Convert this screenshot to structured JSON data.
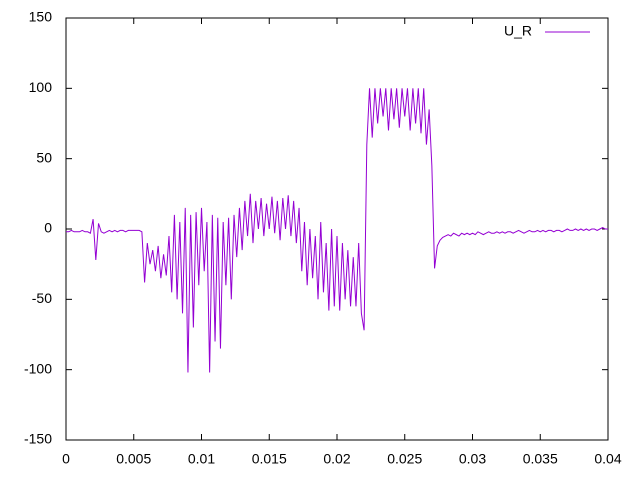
{
  "chart_data": {
    "type": "line",
    "xlim": [
      0,
      0.04
    ],
    "ylim": [
      -150,
      150
    ],
    "xticks": [
      0,
      0.005,
      0.01,
      0.015,
      0.02,
      0.025,
      0.03,
      0.035,
      0.04
    ],
    "yticks": [
      -150,
      -100,
      -50,
      0,
      50,
      100,
      150
    ],
    "legend": "top-right",
    "grid": false,
    "x": [
      0,
      0.0002,
      0.0004,
      0.0006,
      0.0008,
      0.001,
      0.0012,
      0.0014,
      0.0016,
      0.0018,
      0.002,
      0.0022,
      0.0024,
      0.0026,
      0.0028,
      0.003,
      0.0032,
      0.0034,
      0.0036,
      0.0038,
      0.004,
      0.0042,
      0.0044,
      0.0046,
      0.0048,
      0.005,
      0.0052,
      0.0054,
      0.0056,
      0.0058,
      0.006,
      0.0062,
      0.0064,
      0.0066,
      0.0068,
      0.007,
      0.0072,
      0.0074,
      0.0076,
      0.0078,
      0.008,
      0.0082,
      0.0084,
      0.0086,
      0.0088,
      0.009,
      0.0092,
      0.0094,
      0.0096,
      0.0098,
      0.01,
      0.0102,
      0.0104,
      0.0106,
      0.0108,
      0.011,
      0.0112,
      0.0114,
      0.0116,
      0.0118,
      0.012,
      0.0122,
      0.0124,
      0.0126,
      0.0128,
      0.013,
      0.0132,
      0.0134,
      0.0136,
      0.0138,
      0.014,
      0.0142,
      0.0144,
      0.0146,
      0.0148,
      0.015,
      0.0152,
      0.0154,
      0.0156,
      0.0158,
      0.016,
      0.0162,
      0.0164,
      0.0166,
      0.0168,
      0.017,
      0.0172,
      0.0174,
      0.0176,
      0.0178,
      0.018,
      0.0182,
      0.0184,
      0.0186,
      0.0188,
      0.019,
      0.0192,
      0.0194,
      0.0196,
      0.0198,
      0.02,
      0.0202,
      0.0204,
      0.0206,
      0.0208,
      0.021,
      0.0212,
      0.0214,
      0.0216,
      0.0218,
      0.022,
      0.0222,
      0.0224,
      0.0226,
      0.0228,
      0.023,
      0.0232,
      0.0234,
      0.0236,
      0.0238,
      0.024,
      0.0242,
      0.0244,
      0.0246,
      0.0248,
      0.025,
      0.0252,
      0.0254,
      0.0256,
      0.0258,
      0.026,
      0.0262,
      0.0264,
      0.0266,
      0.0268,
      0.027,
      0.0272,
      0.0274,
      0.0276,
      0.0278,
      0.028,
      0.0282,
      0.0284,
      0.0286,
      0.0288,
      0.029,
      0.0292,
      0.0294,
      0.0296,
      0.0298,
      0.03,
      0.0302,
      0.0304,
      0.0306,
      0.0308,
      0.031,
      0.0312,
      0.0314,
      0.0316,
      0.0318,
      0.032,
      0.0322,
      0.0324,
      0.0326,
      0.0328,
      0.033,
      0.0332,
      0.0334,
      0.0336,
      0.0338,
      0.034,
      0.0342,
      0.0344,
      0.0346,
      0.0348,
      0.035,
      0.0352,
      0.0354,
      0.0356,
      0.0358,
      0.036,
      0.0362,
      0.0364,
      0.0366,
      0.0368,
      0.037,
      0.0372,
      0.0374,
      0.0376,
      0.0378,
      0.038,
      0.0382,
      0.0384,
      0.0386,
      0.0388,
      0.039,
      0.0392,
      0.0394,
      0.0396,
      0.0398,
      0.04
    ],
    "series": [
      {
        "name": "U_R",
        "color": "#9400d3",
        "values": [
          -2,
          -2,
          -1,
          -2,
          -2,
          -2,
          -1,
          -2,
          -2,
          -3,
          7,
          -22,
          4,
          -2,
          -3,
          -2,
          -1,
          -2,
          -1,
          -2,
          -1,
          -1,
          -2,
          -1,
          -1,
          -1,
          -1,
          -1,
          -2,
          -38,
          -10,
          -25,
          -15,
          -30,
          -12,
          -35,
          -18,
          -33,
          -5,
          -45,
          10,
          -50,
          5,
          -60,
          15,
          -102,
          10,
          -70,
          12,
          -40,
          15,
          -30,
          5,
          -102,
          10,
          -80,
          8,
          -85,
          5,
          -40,
          8,
          -50,
          10,
          -20,
          15,
          -15,
          20,
          -5,
          25,
          -10,
          20,
          0,
          22,
          -5,
          18,
          0,
          23,
          -3,
          20,
          -8,
          22,
          0,
          24,
          -5,
          20,
          -10,
          15,
          -30,
          5,
          -40,
          0,
          -35,
          -5,
          -50,
          5,
          -45,
          -10,
          -58,
          0,
          -55,
          -5,
          -58,
          -10,
          -50,
          -15,
          -55,
          -20,
          -55,
          -10,
          -60,
          -72,
          60,
          100,
          65,
          100,
          75,
          100,
          80,
          100,
          70,
          100,
          78,
          100,
          72,
          100,
          80,
          100,
          70,
          100,
          75,
          100,
          68,
          100,
          60,
          85,
          45,
          -28,
          -12,
          -8,
          -6,
          -5,
          -4,
          -5,
          -3,
          -4,
          -5,
          -3,
          -4,
          -3,
          -4,
          -3,
          -4,
          -2,
          -3,
          -4,
          -3,
          -2,
          -3,
          -3,
          -2,
          -3,
          -2,
          -3,
          -2,
          -2,
          -3,
          -2,
          -1,
          -2,
          -3,
          -2,
          -1,
          -2,
          -2,
          -1,
          -2,
          -1,
          -2,
          -1,
          -1,
          -2,
          -1,
          -1,
          -2,
          -1,
          0,
          -1,
          -1,
          0,
          -1,
          0,
          -1,
          0,
          -1,
          0,
          0,
          -1,
          0,
          1,
          0,
          0
        ]
      }
    ]
  }
}
